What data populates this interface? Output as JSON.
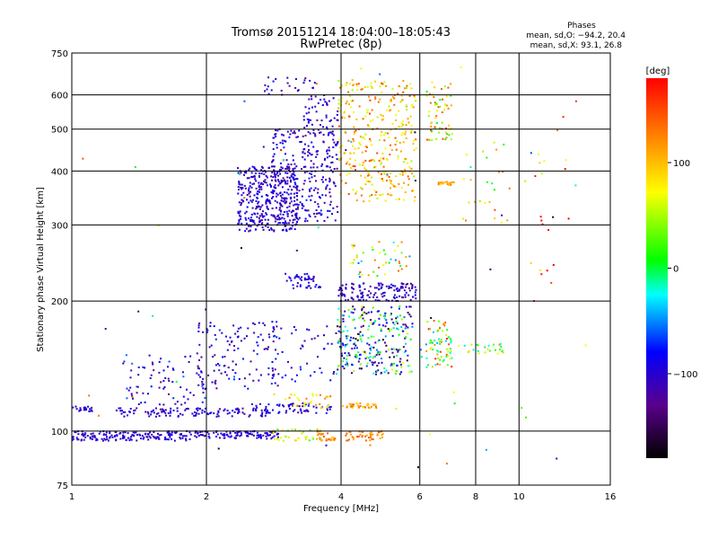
{
  "chart_data": {
    "type": "scatter",
    "title": "Tromsø 20151214 18:04:00–18:05:43",
    "subtitle": "RwPretec (8p)",
    "xlabel": "Frequency [MHz]",
    "ylabel": "Stationary phase Virtual Height [km]",
    "x_scale": "log",
    "y_scale": "log",
    "xlim": [
      1,
      16
    ],
    "ylim": [
      75,
      750
    ],
    "grid": true,
    "x_ticks": [
      1,
      2,
      4,
      6,
      8,
      10,
      16
    ],
    "x_tick_labels": [
      "1",
      "2",
      "4",
      "6",
      "8",
      "10",
      "16"
    ],
    "y_ticks": [
      75,
      100,
      200,
      300,
      400,
      500,
      600,
      750
    ],
    "y_tick_labels": [
      "75",
      "100",
      "200",
      "300",
      "400",
      "500",
      "600",
      "750"
    ],
    "stats": {
      "heading": "Phases",
      "line1": "mean, sd,O: −94.2, 20.4",
      "line2": "mean, sd,X:  93.1, 26.8"
    },
    "colorbar": {
      "label": "[deg]",
      "range": [
        -180,
        180
      ],
      "ticks": [
        100,
        0,
        -100
      ],
      "tick_labels": [
        "100",
        "0",
        "−100"
      ]
    },
    "clusters": [
      {
        "fmin": 1.0,
        "fmax": 1.85,
        "hmin": 95,
        "hmax": 100,
        "phase": -100,
        "spread": 15,
        "n": 160
      },
      {
        "fmin": 1.85,
        "fmax": 2.9,
        "hmin": 96,
        "hmax": 100,
        "phase": -100,
        "spread": 20,
        "n": 110
      },
      {
        "fmin": 2.8,
        "fmax": 3.6,
        "hmin": 95,
        "hmax": 101,
        "phase": 60,
        "spread": 40,
        "n": 35
      },
      {
        "fmin": 3.5,
        "fmax": 3.9,
        "hmin": 95,
        "hmax": 100,
        "phase": 120,
        "spread": 30,
        "n": 30
      },
      {
        "fmin": 4.1,
        "fmax": 5.0,
        "hmin": 95,
        "hmax": 100,
        "phase": 125,
        "spread": 20,
        "n": 45
      },
      {
        "fmin": 1.0,
        "fmax": 1.12,
        "hmin": 111,
        "hmax": 114,
        "phase": -100,
        "spread": 15,
        "n": 20
      },
      {
        "fmin": 1.25,
        "fmax": 2.8,
        "hmin": 108,
        "hmax": 113,
        "phase": -100,
        "spread": 20,
        "n": 120
      },
      {
        "fmin": 2.5,
        "fmax": 3.9,
        "hmin": 110,
        "hmax": 116,
        "phase": -95,
        "spread": 25,
        "n": 60
      },
      {
        "fmin": 3.0,
        "fmax": 3.9,
        "hmin": 113,
        "hmax": 122,
        "phase": 100,
        "spread": 40,
        "n": 30
      },
      {
        "fmin": 4.0,
        "fmax": 4.8,
        "hmin": 113,
        "hmax": 116,
        "phase": 110,
        "spread": 30,
        "n": 35
      },
      {
        "fmin": 1.3,
        "fmax": 2.0,
        "hmin": 115,
        "hmax": 150,
        "phase": -95,
        "spread": 40,
        "n": 80
      },
      {
        "fmin": 1.9,
        "fmax": 2.9,
        "hmin": 125,
        "hmax": 180,
        "phase": -100,
        "spread": 35,
        "n": 130
      },
      {
        "fmin": 2.8,
        "fmax": 3.9,
        "hmin": 130,
        "hmax": 175,
        "phase": -100,
        "spread": 30,
        "n": 45
      },
      {
        "fmin": 3.9,
        "fmax": 5.8,
        "hmin": 135,
        "hmax": 195,
        "phase": -50,
        "spread": 120,
        "n": 280
      },
      {
        "fmin": 6.2,
        "fmax": 7.1,
        "hmin": 140,
        "hmax": 180,
        "phase": 60,
        "spread": 110,
        "n": 70
      },
      {
        "fmin": 7.3,
        "fmax": 9.3,
        "hmin": 150,
        "hmax": 160,
        "phase": 40,
        "spread": 80,
        "n": 25
      },
      {
        "fmin": 3.0,
        "fmax": 3.5,
        "hmin": 220,
        "hmax": 232,
        "phase": -95,
        "spread": 20,
        "n": 30
      },
      {
        "fmin": 3.1,
        "fmax": 3.6,
        "hmin": 212,
        "hmax": 218,
        "phase": -95,
        "spread": 20,
        "n": 15
      },
      {
        "fmin": 3.95,
        "fmax": 5.9,
        "hmin": 200,
        "hmax": 220,
        "phase": -105,
        "spread": 20,
        "n": 140
      },
      {
        "fmin": 4.2,
        "fmax": 5.7,
        "hmin": 225,
        "hmax": 275,
        "phase": 40,
        "spread": 110,
        "n": 45
      },
      {
        "fmin": 2.35,
        "fmax": 3.2,
        "hmin": 290,
        "hmax": 410,
        "phase": -100,
        "spread": 25,
        "n": 380
      },
      {
        "fmin": 2.8,
        "fmax": 3.95,
        "hmin": 300,
        "hmax": 500,
        "phase": -100,
        "spread": 30,
        "n": 260
      },
      {
        "fmin": 3.3,
        "fmax": 3.95,
        "hmin": 480,
        "hmax": 600,
        "phase": -100,
        "spread": 30,
        "n": 60
      },
      {
        "fmin": 2.7,
        "fmax": 3.5,
        "hmin": 600,
        "hmax": 660,
        "phase": -100,
        "spread": 30,
        "n": 25
      },
      {
        "fmin": 3.95,
        "fmax": 5.9,
        "hmin": 340,
        "hmax": 650,
        "phase": 100,
        "spread": 55,
        "n": 330
      },
      {
        "fmin": 6.2,
        "fmax": 7.1,
        "hmin": 470,
        "hmax": 650,
        "phase": 80,
        "spread": 80,
        "n": 60
      },
      {
        "fmin": 6.6,
        "fmax": 7.2,
        "hmin": 370,
        "hmax": 378,
        "phase": 110,
        "spread": 25,
        "n": 20
      },
      {
        "fmin": 7.5,
        "fmax": 9.5,
        "hmin": 300,
        "hmax": 470,
        "phase": 60,
        "spread": 100,
        "n": 22
      },
      {
        "fmin": 10.5,
        "fmax": 13.0,
        "hmin": 200,
        "hmax": 600,
        "phase": 140,
        "spread": 80,
        "n": 20
      },
      {
        "fmin": 1.0,
        "fmax": 16.0,
        "hmin": 80,
        "hmax": 700,
        "phase": 0,
        "spread": 180,
        "n": 70
      }
    ]
  }
}
